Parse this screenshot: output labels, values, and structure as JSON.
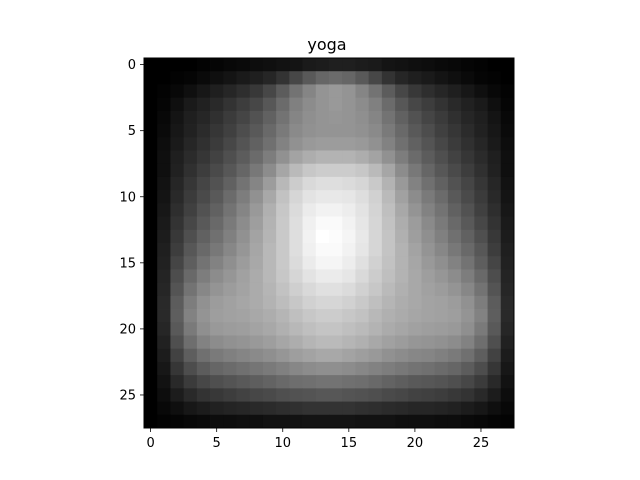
{
  "chart_data": {
    "type": "heatmap",
    "title": "yoga",
    "xlabel": "",
    "ylabel": "",
    "colormap": "gray",
    "value_range": [
      0,
      1
    ],
    "rows": 28,
    "cols": 28,
    "xlim": [
      -0.5,
      27.5
    ],
    "ylim": [
      27.5,
      -0.5
    ],
    "x_ticks": [
      0,
      5,
      10,
      15,
      20,
      25
    ],
    "y_ticks": [
      0,
      5,
      10,
      15,
      20,
      25
    ],
    "x_tick_labels": [
      "0",
      "5",
      "10",
      "15",
      "20",
      "25"
    ],
    "y_tick_labels": [
      "0",
      "5",
      "10",
      "15",
      "20",
      "25"
    ],
    "grid": false,
    "legend": "none",
    "colors": {
      "axes_frame": "#000000",
      "text": "#000000",
      "background": "#ffffff"
    },
    "values": [
      [
        0.0,
        0.0,
        0.0,
        0.0,
        0.01,
        0.02,
        0.03,
        0.04,
        0.05,
        0.06,
        0.07,
        0.08,
        0.1,
        0.11,
        0.12,
        0.12,
        0.11,
        0.1,
        0.08,
        0.07,
        0.06,
        0.05,
        0.04,
        0.03,
        0.02,
        0.01,
        0.0,
        0.0
      ],
      [
        0.0,
        0.0,
        0.01,
        0.02,
        0.04,
        0.06,
        0.08,
        0.1,
        0.12,
        0.15,
        0.2,
        0.28,
        0.35,
        0.4,
        0.42,
        0.4,
        0.35,
        0.28,
        0.2,
        0.15,
        0.12,
        0.1,
        0.08,
        0.06,
        0.04,
        0.02,
        0.01,
        0.0
      ],
      [
        0.0,
        0.01,
        0.03,
        0.06,
        0.09,
        0.12,
        0.15,
        0.18,
        0.22,
        0.28,
        0.36,
        0.45,
        0.52,
        0.58,
        0.6,
        0.58,
        0.52,
        0.45,
        0.36,
        0.28,
        0.22,
        0.18,
        0.15,
        0.12,
        0.09,
        0.06,
        0.03,
        0.01
      ],
      [
        0.0,
        0.02,
        0.06,
        0.1,
        0.13,
        0.16,
        0.2,
        0.24,
        0.28,
        0.34,
        0.42,
        0.5,
        0.55,
        0.58,
        0.6,
        0.58,
        0.55,
        0.5,
        0.42,
        0.34,
        0.28,
        0.24,
        0.2,
        0.16,
        0.13,
        0.1,
        0.06,
        0.02
      ],
      [
        0.0,
        0.03,
        0.08,
        0.12,
        0.15,
        0.19,
        0.23,
        0.27,
        0.32,
        0.38,
        0.45,
        0.52,
        0.56,
        0.58,
        0.59,
        0.58,
        0.56,
        0.52,
        0.45,
        0.38,
        0.32,
        0.27,
        0.23,
        0.19,
        0.15,
        0.12,
        0.08,
        0.03
      ],
      [
        0.0,
        0.04,
        0.09,
        0.13,
        0.17,
        0.21,
        0.25,
        0.3,
        0.35,
        0.41,
        0.48,
        0.54,
        0.57,
        0.58,
        0.58,
        0.58,
        0.57,
        0.54,
        0.48,
        0.41,
        0.35,
        0.3,
        0.25,
        0.21,
        0.17,
        0.13,
        0.09,
        0.04
      ],
      [
        0.0,
        0.05,
        0.1,
        0.15,
        0.19,
        0.23,
        0.28,
        0.33,
        0.38,
        0.44,
        0.51,
        0.57,
        0.6,
        0.61,
        0.61,
        0.61,
        0.6,
        0.57,
        0.51,
        0.44,
        0.38,
        0.33,
        0.28,
        0.23,
        0.19,
        0.15,
        0.1,
        0.05
      ],
      [
        0.0,
        0.06,
        0.12,
        0.17,
        0.21,
        0.26,
        0.31,
        0.36,
        0.42,
        0.49,
        0.57,
        0.64,
        0.68,
        0.7,
        0.7,
        0.7,
        0.68,
        0.64,
        0.57,
        0.49,
        0.42,
        0.36,
        0.31,
        0.26,
        0.21,
        0.17,
        0.12,
        0.06
      ],
      [
        0.0,
        0.06,
        0.13,
        0.19,
        0.24,
        0.29,
        0.34,
        0.4,
        0.47,
        0.55,
        0.65,
        0.73,
        0.78,
        0.8,
        0.8,
        0.8,
        0.78,
        0.73,
        0.65,
        0.55,
        0.47,
        0.4,
        0.34,
        0.29,
        0.24,
        0.19,
        0.13,
        0.06
      ],
      [
        0.0,
        0.07,
        0.15,
        0.21,
        0.27,
        0.32,
        0.38,
        0.45,
        0.52,
        0.61,
        0.72,
        0.8,
        0.85,
        0.87,
        0.87,
        0.86,
        0.84,
        0.79,
        0.7,
        0.6,
        0.51,
        0.44,
        0.38,
        0.32,
        0.27,
        0.21,
        0.15,
        0.07
      ],
      [
        0.0,
        0.08,
        0.16,
        0.23,
        0.29,
        0.35,
        0.42,
        0.49,
        0.57,
        0.66,
        0.76,
        0.84,
        0.89,
        0.91,
        0.91,
        0.9,
        0.87,
        0.82,
        0.73,
        0.63,
        0.55,
        0.48,
        0.42,
        0.35,
        0.29,
        0.23,
        0.16,
        0.08
      ],
      [
        0.0,
        0.09,
        0.18,
        0.25,
        0.32,
        0.38,
        0.45,
        0.52,
        0.6,
        0.69,
        0.78,
        0.86,
        0.92,
        0.95,
        0.95,
        0.93,
        0.89,
        0.83,
        0.75,
        0.66,
        0.58,
        0.51,
        0.45,
        0.38,
        0.32,
        0.25,
        0.18,
        0.09
      ],
      [
        0.0,
        0.1,
        0.2,
        0.28,
        0.35,
        0.41,
        0.48,
        0.55,
        0.62,
        0.7,
        0.79,
        0.87,
        0.94,
        0.98,
        0.98,
        0.95,
        0.9,
        0.84,
        0.76,
        0.68,
        0.61,
        0.54,
        0.48,
        0.41,
        0.35,
        0.28,
        0.2,
        0.1
      ],
      [
        0.0,
        0.11,
        0.22,
        0.31,
        0.38,
        0.44,
        0.5,
        0.57,
        0.64,
        0.71,
        0.79,
        0.87,
        0.95,
        1.0,
        0.99,
        0.96,
        0.91,
        0.84,
        0.77,
        0.69,
        0.62,
        0.56,
        0.5,
        0.44,
        0.38,
        0.31,
        0.22,
        0.11
      ],
      [
        0.0,
        0.12,
        0.24,
        0.34,
        0.41,
        0.47,
        0.53,
        0.59,
        0.65,
        0.72,
        0.79,
        0.87,
        0.94,
        0.98,
        0.98,
        0.95,
        0.9,
        0.84,
        0.77,
        0.7,
        0.64,
        0.58,
        0.53,
        0.47,
        0.41,
        0.34,
        0.24,
        0.12
      ],
      [
        0.0,
        0.13,
        0.27,
        0.37,
        0.45,
        0.51,
        0.56,
        0.61,
        0.66,
        0.72,
        0.79,
        0.86,
        0.92,
        0.96,
        0.96,
        0.93,
        0.88,
        0.82,
        0.76,
        0.7,
        0.65,
        0.6,
        0.56,
        0.51,
        0.45,
        0.37,
        0.27,
        0.13
      ],
      [
        0.0,
        0.14,
        0.3,
        0.41,
        0.49,
        0.55,
        0.59,
        0.63,
        0.67,
        0.72,
        0.78,
        0.84,
        0.89,
        0.92,
        0.92,
        0.9,
        0.85,
        0.8,
        0.75,
        0.7,
        0.66,
        0.62,
        0.59,
        0.55,
        0.49,
        0.41,
        0.3,
        0.14
      ],
      [
        0.0,
        0.15,
        0.33,
        0.45,
        0.53,
        0.58,
        0.61,
        0.64,
        0.67,
        0.71,
        0.76,
        0.81,
        0.85,
        0.88,
        0.88,
        0.86,
        0.82,
        0.78,
        0.73,
        0.69,
        0.66,
        0.63,
        0.61,
        0.58,
        0.53,
        0.45,
        0.33,
        0.15
      ],
      [
        0.0,
        0.16,
        0.36,
        0.49,
        0.57,
        0.61,
        0.63,
        0.65,
        0.67,
        0.7,
        0.74,
        0.78,
        0.82,
        0.84,
        0.84,
        0.82,
        0.79,
        0.75,
        0.71,
        0.68,
        0.66,
        0.64,
        0.63,
        0.61,
        0.57,
        0.49,
        0.36,
        0.16
      ],
      [
        0.0,
        0.16,
        0.37,
        0.51,
        0.58,
        0.62,
        0.63,
        0.64,
        0.66,
        0.68,
        0.71,
        0.75,
        0.78,
        0.8,
        0.8,
        0.78,
        0.76,
        0.72,
        0.69,
        0.67,
        0.65,
        0.64,
        0.63,
        0.62,
        0.58,
        0.51,
        0.37,
        0.16
      ],
      [
        0.0,
        0.15,
        0.35,
        0.48,
        0.56,
        0.6,
        0.61,
        0.62,
        0.64,
        0.66,
        0.69,
        0.72,
        0.75,
        0.77,
        0.77,
        0.75,
        0.73,
        0.7,
        0.67,
        0.65,
        0.63,
        0.62,
        0.61,
        0.6,
        0.56,
        0.48,
        0.35,
        0.15
      ],
      [
        0.0,
        0.13,
        0.31,
        0.43,
        0.51,
        0.55,
        0.57,
        0.58,
        0.6,
        0.62,
        0.65,
        0.68,
        0.71,
        0.73,
        0.73,
        0.71,
        0.69,
        0.66,
        0.63,
        0.61,
        0.59,
        0.58,
        0.57,
        0.55,
        0.51,
        0.43,
        0.31,
        0.13
      ],
      [
        0.0,
        0.11,
        0.26,
        0.37,
        0.44,
        0.48,
        0.5,
        0.52,
        0.54,
        0.56,
        0.59,
        0.62,
        0.64,
        0.66,
        0.66,
        0.64,
        0.62,
        0.6,
        0.57,
        0.55,
        0.53,
        0.52,
        0.5,
        0.48,
        0.44,
        0.37,
        0.26,
        0.11
      ],
      [
        0.0,
        0.09,
        0.21,
        0.3,
        0.36,
        0.4,
        0.42,
        0.44,
        0.46,
        0.48,
        0.5,
        0.53,
        0.55,
        0.56,
        0.56,
        0.55,
        0.53,
        0.51,
        0.49,
        0.47,
        0.45,
        0.44,
        0.42,
        0.4,
        0.36,
        0.3,
        0.21,
        0.09
      ],
      [
        0.0,
        0.07,
        0.16,
        0.23,
        0.28,
        0.31,
        0.33,
        0.35,
        0.37,
        0.39,
        0.41,
        0.43,
        0.44,
        0.45,
        0.45,
        0.44,
        0.43,
        0.41,
        0.39,
        0.37,
        0.35,
        0.34,
        0.33,
        0.31,
        0.28,
        0.23,
        0.16,
        0.07
      ],
      [
        0.0,
        0.05,
        0.11,
        0.16,
        0.2,
        0.22,
        0.24,
        0.26,
        0.28,
        0.29,
        0.31,
        0.32,
        0.33,
        0.34,
        0.34,
        0.33,
        0.32,
        0.31,
        0.29,
        0.28,
        0.26,
        0.25,
        0.24,
        0.22,
        0.2,
        0.16,
        0.11,
        0.05
      ],
      [
        0.0,
        0.03,
        0.06,
        0.09,
        0.11,
        0.13,
        0.14,
        0.15,
        0.16,
        0.17,
        0.18,
        0.19,
        0.2,
        0.2,
        0.2,
        0.2,
        0.19,
        0.18,
        0.17,
        0.16,
        0.15,
        0.15,
        0.14,
        0.13,
        0.11,
        0.09,
        0.06,
        0.03
      ],
      [
        0.0,
        0.01,
        0.02,
        0.03,
        0.04,
        0.05,
        0.05,
        0.06,
        0.06,
        0.07,
        0.07,
        0.07,
        0.08,
        0.08,
        0.08,
        0.08,
        0.07,
        0.07,
        0.07,
        0.06,
        0.06,
        0.06,
        0.05,
        0.05,
        0.04,
        0.03,
        0.02,
        0.01
      ]
    ]
  }
}
